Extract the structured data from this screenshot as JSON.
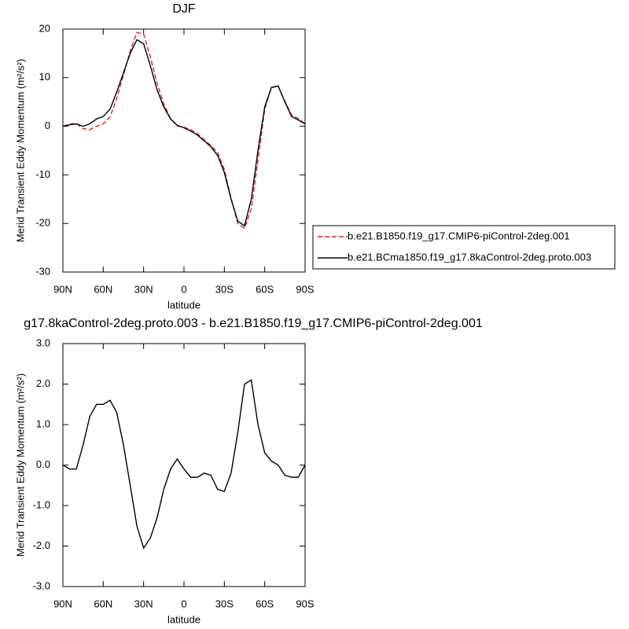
{
  "chart_data": [
    {
      "type": "line",
      "title": "DJF",
      "xlabel": "latitude",
      "ylabel": "Merid Transient Eddy Momentum (m²/s²)",
      "x": [
        90,
        85,
        80,
        75,
        70,
        65,
        60,
        55,
        50,
        45,
        40,
        35,
        30,
        25,
        20,
        15,
        10,
        5,
        0,
        -5,
        -10,
        -15,
        -20,
        -25,
        -30,
        -35,
        -40,
        -45,
        -50,
        -55,
        -60,
        -65,
        -70,
        -75,
        -80,
        -85,
        -90
      ],
      "xlim": [
        90,
        -90
      ],
      "xticks": [
        {
          "value": 90,
          "label": "90N"
        },
        {
          "value": 60,
          "label": "60N"
        },
        {
          "value": 30,
          "label": "30N"
        },
        0,
        {
          "value": -30,
          "label": "30S"
        },
        {
          "value": -60,
          "label": "60S"
        },
        {
          "value": -90,
          "label": "90S"
        }
      ],
      "ylim": [
        -30,
        20
      ],
      "yticks": [
        20,
        10,
        0,
        -10,
        -20,
        -30
      ],
      "legend": "right",
      "series": [
        {
          "name": "b.e21.B1850.f19_g17.CMIP6-piControl-2deg.001",
          "color": "#e0201c",
          "line_style": "dashed",
          "values": [
            0,
            0.4,
            0.6,
            -0.5,
            -0.7,
            0,
            0.5,
            1.9,
            5.7,
            10.5,
            15.5,
            19.3,
            19,
            14.3,
            8.8,
            4.6,
            1.6,
            0.05,
            -0.2,
            -0.7,
            -1.5,
            -2.8,
            -3.95,
            -5.4,
            -8.85,
            -14.8,
            -20,
            -21,
            -17,
            -7,
            3.5,
            8,
            8.2,
            5.2,
            2.3,
            1.6,
            0.5
          ]
        },
        {
          "name": "b.e21.BCma1850.f19_g17.8kaControl-2deg.proto.003",
          "color": "#000000",
          "line_style": "solid",
          "values": [
            0,
            0.3,
            0.5,
            0,
            0.5,
            1.5,
            2,
            3.5,
            7,
            11,
            15,
            17.8,
            17,
            12.5,
            7.5,
            4,
            1.5,
            0.2,
            -0.3,
            -1,
            -1.8,
            -3,
            -4.2,
            -6,
            -9.5,
            -15,
            -19.5,
            -20.5,
            -15,
            -5,
            4,
            8,
            8.3,
            5,
            2,
            1.3,
            0.5
          ]
        }
      ]
    },
    {
      "type": "line",
      "title": "g17.8kaControl-2deg.proto.003 - b.e21.B1850.f19_g17.CMIP6-piControl-2deg.001",
      "xlabel": "latitude",
      "ylabel": "Merid Transient Eddy Momentum (m²/s²)",
      "x": [
        90,
        85,
        80,
        75,
        70,
        65,
        60,
        55,
        50,
        45,
        40,
        35,
        30,
        25,
        20,
        15,
        10,
        5,
        0,
        -5,
        -10,
        -15,
        -20,
        -25,
        -30,
        -35,
        -40,
        -45,
        -50,
        -55,
        -60,
        -65,
        -70,
        -75,
        -80,
        -85,
        -90
      ],
      "xlim": [
        90,
        -90
      ],
      "xticks": [
        {
          "value": 90,
          "label": "90N"
        },
        {
          "value": 60,
          "label": "60N"
        },
        {
          "value": 30,
          "label": "30N"
        },
        0,
        {
          "value": -30,
          "label": "30S"
        },
        {
          "value": -60,
          "label": "60S"
        },
        {
          "value": -90,
          "label": "90S"
        }
      ],
      "ylim": [
        -3,
        3
      ],
      "yticks": [
        {
          "value": 3,
          "label": "3.0"
        },
        {
          "value": 2,
          "label": "2.0"
        },
        {
          "value": 1,
          "label": "1.0"
        },
        {
          "value": 0,
          "label": "0.0"
        },
        {
          "value": -1,
          "label": "-1.0"
        },
        {
          "value": -2,
          "label": "-2.0"
        },
        {
          "value": -3,
          "label": "-3.0"
        }
      ],
      "series": [
        {
          "color": "#000000",
          "line_style": "solid",
          "values": [
            0,
            -0.1,
            -0.1,
            0.5,
            1.2,
            1.5,
            1.5,
            1.6,
            1.3,
            0.5,
            -0.5,
            -1.5,
            -2.05,
            -1.8,
            -1.3,
            -0.6,
            -0.1,
            0.15,
            -0.1,
            -0.3,
            -0.3,
            -0.2,
            -0.25,
            -0.6,
            -0.65,
            -0.2,
            0.8,
            2.0,
            2.1,
            1.0,
            0.3,
            0.1,
            0.0,
            -0.25,
            -0.3,
            -0.3,
            0
          ]
        }
      ]
    }
  ]
}
